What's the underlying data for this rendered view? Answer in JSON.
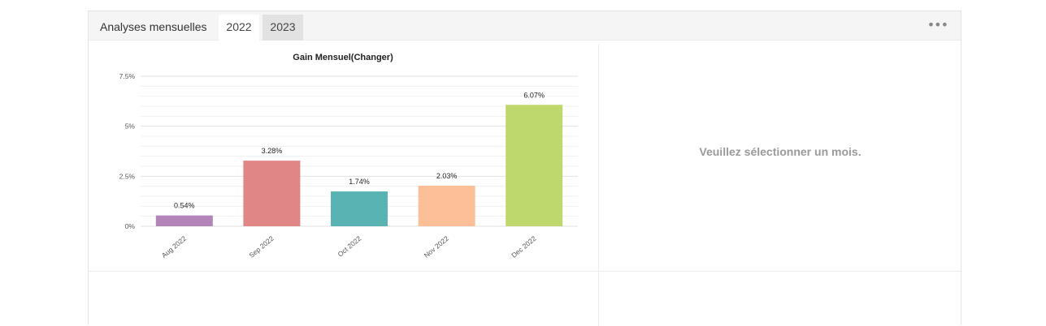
{
  "header": {
    "title": "Analyses mensuelles",
    "tabs": [
      {
        "label": "2022",
        "active": true
      },
      {
        "label": "2023",
        "active": false
      }
    ],
    "menu_icon": "more-horizontal-icon",
    "menu_glyph": "•••"
  },
  "detail": {
    "empty_message": "Veuillez sélectionner un mois."
  },
  "chart_data": {
    "type": "bar",
    "title": "Gain Mensuel(Changer)",
    "xlabel": "",
    "ylabel": "",
    "categories": [
      "Aug 2022",
      "Sep 2022",
      "Oct 2022",
      "Nov 2022",
      "Dec 2022"
    ],
    "values": [
      0.54,
      3.28,
      1.74,
      2.03,
      6.07
    ],
    "value_labels": [
      "0.54%",
      "3.28%",
      "1.74%",
      "2.03%",
      "6.07%"
    ],
    "colors": [
      "#b384b8",
      "#e08686",
      "#5ab3b3",
      "#fdbf98",
      "#bfd86d"
    ],
    "ylim": [
      0,
      7.5
    ],
    "yticks": [
      0,
      2.5,
      5,
      7.5
    ],
    "ytick_labels": [
      "0%",
      "2.5%",
      "5%",
      "7.5%"
    ],
    "grid": true,
    "legend": "none"
  }
}
